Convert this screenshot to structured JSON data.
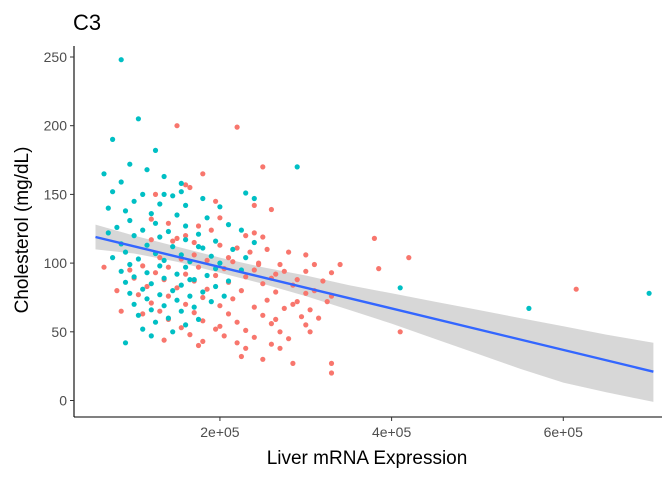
{
  "chart_data": {
    "type": "scatter",
    "title": "C3",
    "xlabel": "Liver mRNA Expression",
    "ylabel": "Cholesterol (mg/dL)",
    "xlim": [
      30000,
      715000
    ],
    "ylim": [
      -12,
      258
    ],
    "x_ticks": [
      200000,
      400000,
      600000
    ],
    "x_tick_labels": [
      "2e+05",
      "4e+05",
      "6e+05"
    ],
    "y_ticks": [
      0,
      50,
      100,
      150,
      200,
      250
    ],
    "y_tick_labels": [
      "0",
      "50",
      "100",
      "150",
      "200",
      "250"
    ],
    "grid": false,
    "legend": "none",
    "colors": {
      "series_a": "#f8766d",
      "series_b": "#00bfc4",
      "fit_line": "#3366ff",
      "confidence_band": "#d3d3d3"
    },
    "series": [
      {
        "color": "#f8766d",
        "points": [
          [
            150000,
            200
          ],
          [
            220000,
            199
          ],
          [
            250000,
            170
          ],
          [
            160000,
            157
          ],
          [
            165000,
            155
          ],
          [
            240000,
            142
          ],
          [
            260000,
            139
          ],
          [
            200000,
            133
          ],
          [
            120000,
            132
          ],
          [
            140000,
            129
          ],
          [
            175000,
            127
          ],
          [
            190000,
            124
          ],
          [
            240000,
            122
          ],
          [
            160000,
            120
          ],
          [
            230000,
            120
          ],
          [
            250000,
            119
          ],
          [
            380000,
            118
          ],
          [
            120000,
            117
          ],
          [
            145000,
            116
          ],
          [
            170000,
            115
          ],
          [
            200000,
            113
          ],
          [
            220000,
            111
          ],
          [
            255000,
            110
          ],
          [
            280000,
            108
          ],
          [
            300000,
            106
          ],
          [
            420000,
            104
          ],
          [
            130000,
            104
          ],
          [
            155000,
            103
          ],
          [
            185000,
            102
          ],
          [
            215000,
            101
          ],
          [
            245000,
            100
          ],
          [
            270000,
            99
          ],
          [
            310000,
            99
          ],
          [
            340000,
            99
          ],
          [
            110000,
            98
          ],
          [
            140000,
            97
          ],
          [
            175000,
            97
          ],
          [
            205000,
            96
          ],
          [
            240000,
            95
          ],
          [
            275000,
            94
          ],
          [
            300000,
            94
          ],
          [
            330000,
            93
          ],
          [
            385000,
            96
          ],
          [
            95000,
            95
          ],
          [
            125000,
            93
          ],
          [
            160000,
            92
          ],
          [
            195000,
            91
          ],
          [
            230000,
            90
          ],
          [
            260000,
            89
          ],
          [
            290000,
            88
          ],
          [
            320000,
            87
          ],
          [
            100000,
            89
          ],
          [
            135000,
            88
          ],
          [
            170000,
            87
          ],
          [
            210000,
            86
          ],
          [
            250000,
            85
          ],
          [
            285000,
            84
          ],
          [
            115000,
            83
          ],
          [
            150000,
            82
          ],
          [
            185000,
            81
          ],
          [
            225000,
            80
          ],
          [
            265000,
            79
          ],
          [
            300000,
            78
          ],
          [
            330000,
            76
          ],
          [
            105000,
            77
          ],
          [
            140000,
            76
          ],
          [
            180000,
            75
          ],
          [
            215000,
            74
          ],
          [
            255000,
            73
          ],
          [
            290000,
            72
          ],
          [
            120000,
            71
          ],
          [
            160000,
            70
          ],
          [
            200000,
            69
          ],
          [
            240000,
            68
          ],
          [
            275000,
            67
          ],
          [
            305000,
            66
          ],
          [
            130000,
            65
          ],
          [
            170000,
            64
          ],
          [
            210000,
            63
          ],
          [
            250000,
            62
          ],
          [
            295000,
            61
          ],
          [
            140000,
            59
          ],
          [
            180000,
            58
          ],
          [
            220000,
            57
          ],
          [
            260000,
            56
          ],
          [
            300000,
            55
          ],
          [
            155000,
            53
          ],
          [
            195000,
            52
          ],
          [
            230000,
            51
          ],
          [
            270000,
            50
          ],
          [
            410000,
            50
          ],
          [
            165000,
            48
          ],
          [
            205000,
            47
          ],
          [
            240000,
            46
          ],
          [
            280000,
            45
          ],
          [
            135000,
            44
          ],
          [
            180000,
            43
          ],
          [
            220000,
            42
          ],
          [
            260000,
            41
          ],
          [
            175000,
            40
          ],
          [
            230000,
            38
          ],
          [
            270000,
            38
          ],
          [
            225000,
            32
          ],
          [
            250000,
            30
          ],
          [
            285000,
            27
          ],
          [
            330000,
            27
          ],
          [
            330000,
            20
          ],
          [
            615000,
            81
          ],
          [
            65000,
            97
          ],
          [
            80000,
            80
          ],
          [
            85000,
            65
          ],
          [
            110000,
            63
          ],
          [
            150000,
            118
          ],
          [
            170000,
            106
          ],
          [
            210000,
            104
          ],
          [
            235000,
            108
          ],
          [
            265000,
            92
          ],
          [
            310000,
            80
          ],
          [
            325000,
            72
          ],
          [
            195000,
            145
          ],
          [
            125000,
            150
          ],
          [
            180000,
            165
          ],
          [
            245000,
            99
          ],
          [
            265000,
            59
          ],
          [
            285000,
            70
          ],
          [
            315000,
            60
          ],
          [
            305000,
            50
          ],
          [
            200000,
            54
          ]
        ]
      },
      {
        "color": "#00bfc4",
        "points": [
          [
            85000,
            248
          ],
          [
            105000,
            205
          ],
          [
            75000,
            190
          ],
          [
            125000,
            182
          ],
          [
            95000,
            172
          ],
          [
            115000,
            168
          ],
          [
            65000,
            165
          ],
          [
            290000,
            170
          ],
          [
            135000,
            163
          ],
          [
            85000,
            159
          ],
          [
            155000,
            158
          ],
          [
            75000,
            152
          ],
          [
            110000,
            150
          ],
          [
            145000,
            149
          ],
          [
            180000,
            147
          ],
          [
            230000,
            151
          ],
          [
            240000,
            147
          ],
          [
            100000,
            145
          ],
          [
            130000,
            143
          ],
          [
            160000,
            142
          ],
          [
            200000,
            141
          ],
          [
            70000,
            140
          ],
          [
            90000,
            138
          ],
          [
            120000,
            136
          ],
          [
            150000,
            135
          ],
          [
            185000,
            133
          ],
          [
            95000,
            131
          ],
          [
            125000,
            129
          ],
          [
            160000,
            127
          ],
          [
            210000,
            128
          ],
          [
            80000,
            126
          ],
          [
            110000,
            124
          ],
          [
            140000,
            123
          ],
          [
            175000,
            121
          ],
          [
            225000,
            124
          ],
          [
            70000,
            122
          ],
          [
            100000,
            120
          ],
          [
            130000,
            119
          ],
          [
            160000,
            117
          ],
          [
            195000,
            116
          ],
          [
            240000,
            115
          ],
          [
            85000,
            114
          ],
          [
            115000,
            113
          ],
          [
            145000,
            112
          ],
          [
            180000,
            111
          ],
          [
            215000,
            110
          ],
          [
            90000,
            108
          ],
          [
            125000,
            107
          ],
          [
            155000,
            106
          ],
          [
            190000,
            105
          ],
          [
            230000,
            104
          ],
          [
            75000,
            104
          ],
          [
            105000,
            103
          ],
          [
            135000,
            102
          ],
          [
            165000,
            101
          ],
          [
            200000,
            100
          ],
          [
            95000,
            99
          ],
          [
            130000,
            98
          ],
          [
            160000,
            97
          ],
          [
            195000,
            96
          ],
          [
            225000,
            95
          ],
          [
            85000,
            94
          ],
          [
            115000,
            93
          ],
          [
            150000,
            92
          ],
          [
            185000,
            91
          ],
          [
            100000,
            90
          ],
          [
            135000,
            89
          ],
          [
            170000,
            88
          ],
          [
            210000,
            87
          ],
          [
            90000,
            86
          ],
          [
            120000,
            85
          ],
          [
            155000,
            84
          ],
          [
            195000,
            83
          ],
          [
            410000,
            82
          ],
          [
            110000,
            81
          ],
          [
            145000,
            80
          ],
          [
            180000,
            79
          ],
          [
            95000,
            78
          ],
          [
            130000,
            77
          ],
          [
            165000,
            76
          ],
          [
            205000,
            76
          ],
          [
            700000,
            78
          ],
          [
            115000,
            74
          ],
          [
            150000,
            73
          ],
          [
            190000,
            72
          ],
          [
            100000,
            70
          ],
          [
            135000,
            69
          ],
          [
            170000,
            68
          ],
          [
            120000,
            66
          ],
          [
            155000,
            65
          ],
          [
            560000,
            67
          ],
          [
            105000,
            62
          ],
          [
            140000,
            60
          ],
          [
            175000,
            59
          ],
          [
            125000,
            57
          ],
          [
            160000,
            55
          ],
          [
            110000,
            52
          ],
          [
            145000,
            50
          ],
          [
            120000,
            47
          ],
          [
            90000,
            42
          ],
          [
            165000,
            88
          ],
          [
            175000,
            112
          ],
          [
            135000,
            150
          ],
          [
            155000,
            152
          ]
        ]
      }
    ],
    "trend_line": {
      "method": "lm",
      "start": [
        55000,
        119
      ],
      "end": [
        705000,
        21
      ]
    },
    "confidence_band": {
      "x": [
        55000,
        100000,
        150000,
        200000,
        250000,
        300000,
        350000,
        400000,
        450000,
        500000,
        550000,
        600000,
        650000,
        705000
      ],
      "lower": [
        110,
        107,
        101,
        93,
        85,
        76,
        66,
        56,
        45,
        34,
        23,
        13,
        6,
        -1
      ],
      "upper": [
        128,
        120,
        112,
        104,
        97,
        91,
        84,
        78,
        72,
        66,
        60,
        54,
        48,
        42
      ]
    }
  }
}
